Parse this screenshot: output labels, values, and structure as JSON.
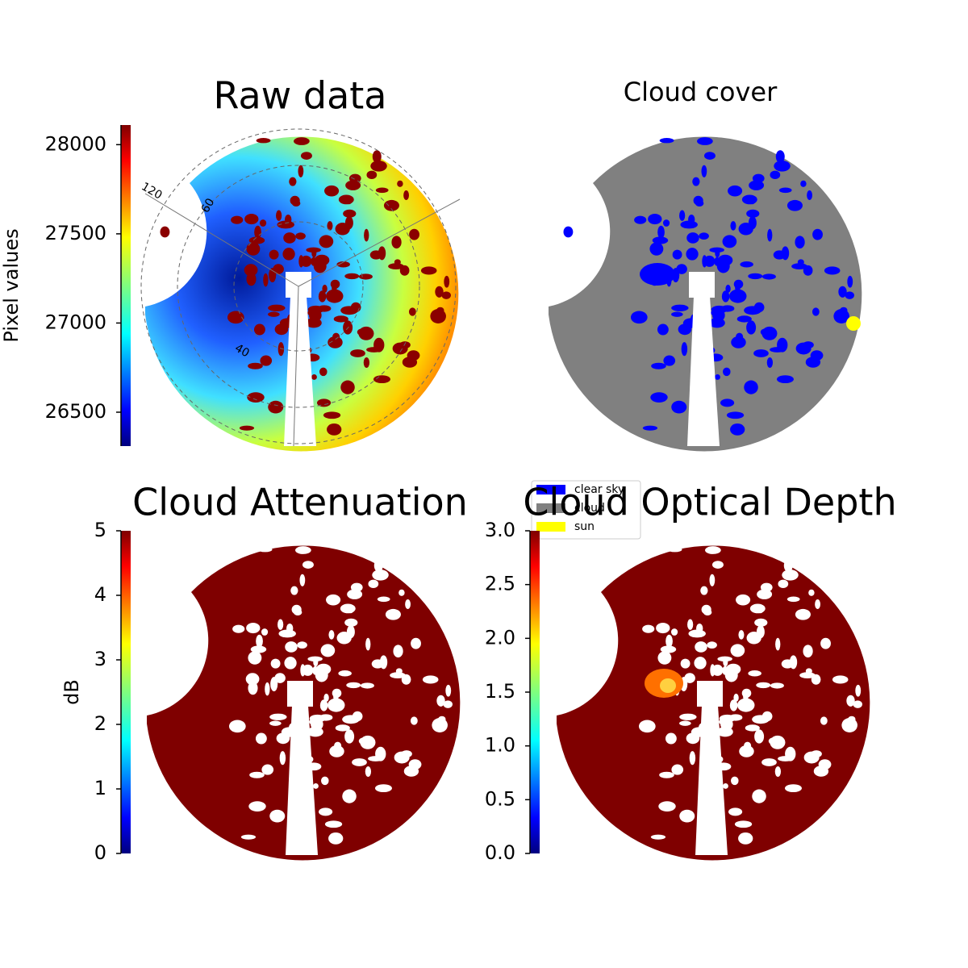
{
  "chart_data": [
    {
      "type": "image",
      "title": "Raw data",
      "colorbar_label": "Pixel values",
      "colormap": "jet",
      "ylim": [
        26310,
        28110
      ],
      "yticks": [
        26500,
        27000,
        27500,
        28000
      ],
      "annotations": [
        "120",
        "60",
        "40"
      ]
    },
    {
      "type": "categorical-image",
      "title": "Cloud cover",
      "series": [
        {
          "name": "clear sky",
          "color": "#0000ff"
        },
        {
          "name": "cloud",
          "color": "#808080"
        },
        {
          "name": "sun",
          "color": "#ffff00"
        }
      ],
      "legend": "lower left"
    },
    {
      "type": "image",
      "title": "Cloud Attenuation",
      "colorbar_label": "dB",
      "colormap": "jet",
      "ylim": [
        0,
        5
      ],
      "yticks": [
        0,
        1,
        2,
        3,
        4,
        5
      ]
    },
    {
      "type": "image",
      "title": "Cloud Optical Depth",
      "colormap": "jet",
      "ylim": [
        0,
        3
      ],
      "yticks": [
        {
          "value": 0,
          "label": "0.0"
        },
        {
          "value": 0.5,
          "label": "0.5"
        },
        {
          "value": 1,
          "label": "1.0"
        },
        {
          "value": 1.5,
          "label": "1.5"
        },
        {
          "value": 2,
          "label": "2.0"
        },
        {
          "value": 2.5,
          "label": "2.5"
        },
        {
          "value": 3,
          "label": "3.0"
        }
      ]
    }
  ]
}
